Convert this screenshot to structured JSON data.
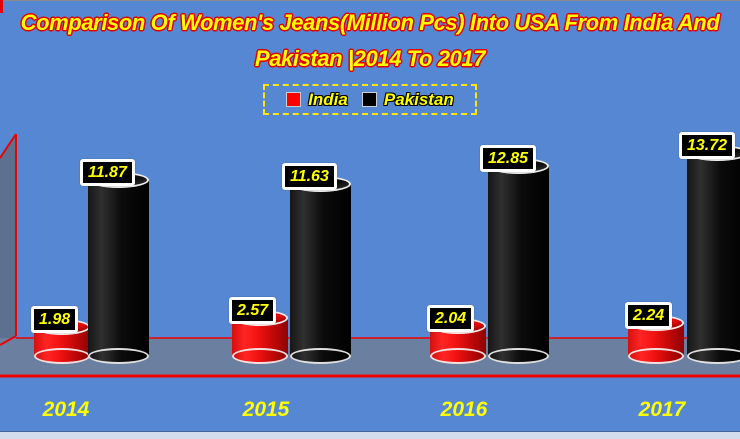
{
  "title": {
    "line1": "Comparison Of Women's Jeans(Million Pcs) Into USA From India And",
    "line2": "Pakistan |2014 To 2017",
    "text_color": "#ffff00",
    "outline_color": "#e10000"
  },
  "legend": {
    "border_color": "#ffe608",
    "items": [
      {
        "label": "India",
        "color": "#ff0000"
      },
      {
        "label": "Pakistan",
        "color": "#000000"
      }
    ]
  },
  "chart_data": {
    "type": "bar",
    "style": "3d-cylinder",
    "title": "Comparison Of Women's Jeans(Million Pcs) Into USA From India And Pakistan |2014 To 2017",
    "unit": "Million Pcs",
    "categories": [
      "2014",
      "2015",
      "2016",
      "2017"
    ],
    "series": [
      {
        "name": "India",
        "color": "#ff0000",
        "values": [
          1.98,
          2.57,
          2.04,
          2.24
        ],
        "labels": [
          "1.98",
          "2.57",
          "2.04",
          "2.24"
        ]
      },
      {
        "name": "Pakistan",
        "color": "#000000",
        "values": [
          11.87,
          11.63,
          12.85,
          13.72
        ],
        "labels": [
          "11.87",
          "11.63",
          "12.85",
          "13.72"
        ]
      }
    ],
    "ylim": [
      0,
      14
    ],
    "grid": false,
    "y_axis_visible": false,
    "legend_position": "top",
    "data_labels": {
      "text_color": "#ffff00",
      "bg_color": "#000000",
      "border_color": "#ffffff"
    }
  },
  "colors": {
    "background": "#5587d2",
    "wall": "#5c7090",
    "floor": "#6b80a0",
    "axis_line": "#ee0000",
    "category_label": "#ffff00",
    "bottom_strip": "#d3dcec"
  }
}
